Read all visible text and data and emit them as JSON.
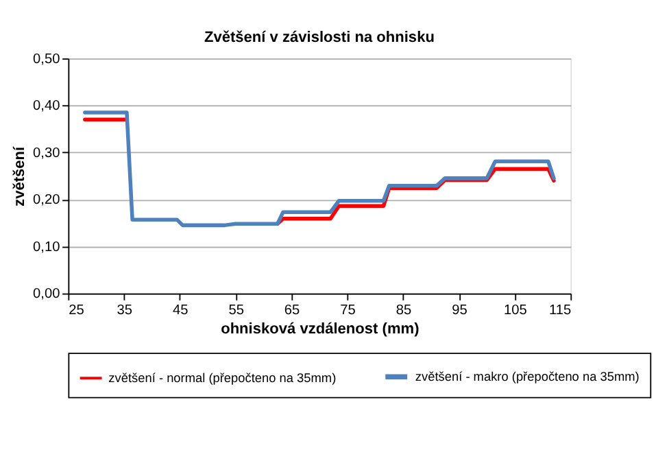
{
  "chart_data": {
    "type": "line",
    "title": "Zvětšení v závislosti na ohnisku",
    "xlabel": "ohnisková vzdálenost (mm)",
    "ylabel": "zvětšení",
    "xlim": [
      25,
      115
    ],
    "xticks": [
      25,
      35,
      45,
      55,
      65,
      75,
      85,
      95,
      105,
      115
    ],
    "ylim": [
      0,
      0.5
    ],
    "yticks": [
      {
        "value": 0,
        "label": "0,00"
      },
      {
        "value": 0.1,
        "label": "0,10"
      },
      {
        "value": 0.2,
        "label": "0,20"
      },
      {
        "value": 0.3,
        "label": "0,30"
      },
      {
        "value": 0.4,
        "label": "0,40"
      },
      {
        "value": 0.5,
        "label": "0,50"
      }
    ],
    "grid": "y",
    "legend": "bottom",
    "marker": "none",
    "line_style": "solid",
    "series": [
      {
        "name": "zvětšení - normal (přepočteno na 35mm)",
        "color": "#ff0000",
        "x": [
          28,
          35.5,
          36.5,
          44.5,
          45.5,
          53,
          55,
          62.5,
          63.5,
          72,
          73.5,
          81.5,
          82.5,
          91,
          92.5,
          100,
          101.5,
          111,
          112
        ],
        "values": [
          0.37,
          0.37,
          null,
          null,
          null,
          null,
          null,
          0.148,
          0.159,
          0.159,
          0.186,
          0.186,
          0.224,
          0.224,
          0.241,
          0.241,
          0.265,
          0.265,
          0.24
        ]
      },
      {
        "name": "zvětšení - makro (přepočteno na 35mm)",
        "color": "#4f81bd",
        "x": [
          28,
          35.5,
          36.5,
          44.5,
          45.5,
          53,
          55,
          62.5,
          63.5,
          72,
          73.5,
          81.5,
          82.5,
          91,
          92.5,
          100,
          101.5,
          111,
          112
        ],
        "values": [
          0.385,
          0.385,
          0.157,
          0.157,
          0.145,
          0.145,
          0.148,
          0.148,
          0.173,
          0.173,
          0.197,
          0.197,
          0.229,
          0.229,
          0.245,
          0.245,
          0.281,
          0.281,
          0.245
        ]
      }
    ]
  }
}
